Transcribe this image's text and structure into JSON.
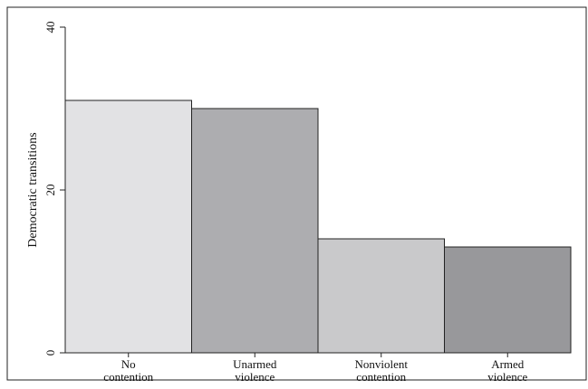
{
  "chart_data": {
    "type": "bar",
    "title": "",
    "xlabel": "",
    "ylabel": "Democratic transitions",
    "ylim": [
      0,
      40
    ],
    "yticks": [
      0,
      20,
      40
    ],
    "grid": false,
    "categories": [
      [
        "No",
        "contention"
      ],
      [
        "Unarmed",
        "violence"
      ],
      [
        "Nonviolent",
        "contention"
      ],
      [
        "Armed",
        "violence"
      ]
    ],
    "values": [
      31,
      30,
      14,
      13
    ],
    "colors": [
      "#e2e2e4",
      "#adadb0",
      "#c9c9cb",
      "#98989b"
    ]
  }
}
